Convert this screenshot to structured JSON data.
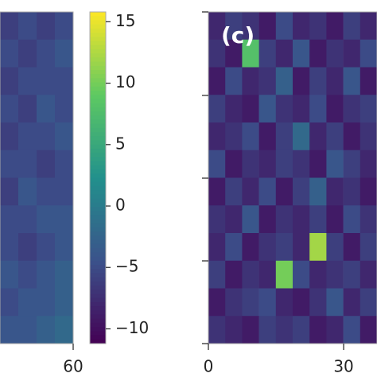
{
  "chart_data": [
    {
      "type": "heatmap",
      "colormap": "viridis",
      "xlim": [
        44,
        60
      ],
      "xticks": [
        60
      ],
      "values": [
        [
          -6,
          -5,
          -6,
          -5
        ],
        [
          -5,
          -6,
          -5,
          -4
        ],
        [
          -6,
          -5,
          -5,
          -5
        ],
        [
          -5,
          -6,
          -4,
          -5
        ],
        [
          -6,
          -5,
          -5,
          -4
        ],
        [
          -5,
          -5,
          -6,
          -5
        ],
        [
          -6,
          -4,
          -5,
          -5
        ],
        [
          -5,
          -5,
          -4,
          -4
        ],
        [
          -5,
          -6,
          -5,
          -4
        ],
        [
          -4,
          -5,
          -4,
          -3
        ],
        [
          -5,
          -4,
          -4,
          -3
        ],
        [
          -4,
          -4,
          -3,
          -2
        ]
      ]
    },
    {
      "type": "heatmap",
      "colormap": "viridis",
      "label": "(c)",
      "xlim": [
        0,
        37.4
      ],
      "xticks": [
        0,
        30
      ],
      "values": [
        [
          -8,
          -6,
          -7,
          -9,
          -5,
          -8,
          -7,
          -9,
          -6,
          -8
        ],
        [
          -7,
          -9,
          8,
          -6,
          -8,
          -4,
          -9,
          -7,
          -8,
          -5
        ],
        [
          -9,
          -5,
          -8,
          -7,
          -3,
          -9,
          -6,
          -8,
          -4,
          -9
        ],
        [
          -6,
          -8,
          -9,
          -4,
          -7,
          -8,
          -5,
          -9,
          -7,
          -6
        ],
        [
          -8,
          -7,
          -5,
          -9,
          -6,
          -2,
          -8,
          -6,
          -9,
          -7
        ],
        [
          -5,
          -9,
          -7,
          -8,
          -6,
          -7,
          -9,
          -4,
          -6,
          -8
        ],
        [
          -9,
          -6,
          -8,
          -5,
          -9,
          -6,
          -3,
          -8,
          -7,
          -9
        ],
        [
          -7,
          -8,
          -4,
          -9,
          -7,
          -8,
          -6,
          -9,
          -5,
          -7
        ],
        [
          -8,
          -5,
          -9,
          -7,
          -6,
          -8,
          12,
          -6,
          -9,
          -6
        ],
        [
          -6,
          -9,
          -7,
          -8,
          10,
          -5,
          -8,
          -7,
          -6,
          -8
        ],
        [
          -9,
          -7,
          -6,
          -5,
          -8,
          -9,
          -7,
          -4,
          -8,
          -6
        ],
        [
          -7,
          -8,
          -9,
          -6,
          -7,
          -6,
          -9,
          -8,
          -5,
          -9
        ]
      ]
    },
    {
      "type": "colorbar",
      "colormap": "viridis",
      "lim": [
        -11.2,
        15.8
      ],
      "ticks": [
        15,
        10,
        5,
        0,
        {
          "value": -5,
          "label": "−5"
        },
        {
          "value": -10,
          "label": "−10"
        }
      ]
    }
  ]
}
